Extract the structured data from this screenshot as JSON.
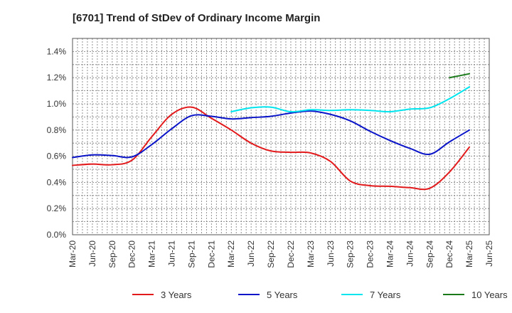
{
  "chart_data": {
    "type": "line",
    "title": "[6701]  Trend of StDev of Ordinary Income Margin",
    "xlabel": "",
    "ylabel": "",
    "x": [
      "Mar-20",
      "Jun-20",
      "Sep-20",
      "Dec-20",
      "Mar-21",
      "Jun-21",
      "Sep-21",
      "Dec-21",
      "Mar-22",
      "Jun-22",
      "Sep-22",
      "Dec-22",
      "Mar-23",
      "Jun-23",
      "Sep-23",
      "Dec-23",
      "Mar-24",
      "Jun-24",
      "Sep-24",
      "Dec-24",
      "Mar-25",
      "Jun-25"
    ],
    "ylim": [
      0,
      1.5
    ],
    "yticks": [
      0.0,
      0.2,
      0.4,
      0.6,
      0.8,
      1.0,
      1.2,
      1.4
    ],
    "ytick_labels": [
      "0.0%",
      "0.2%",
      "0.4%",
      "0.6%",
      "0.8%",
      "1.0%",
      "1.2%",
      "1.4%"
    ],
    "grid": true,
    "legend_position": "bottom",
    "series": [
      {
        "name": "3 Years",
        "color": "#e31a1c",
        "values": [
          0.53,
          0.54,
          0.535,
          0.57,
          0.75,
          0.92,
          0.975,
          0.89,
          0.8,
          0.7,
          0.64,
          0.63,
          0.625,
          0.56,
          0.41,
          0.375,
          0.37,
          0.36,
          0.355,
          0.48,
          0.67,
          null
        ]
      },
      {
        "name": "5 Years",
        "color": "#0a14c8",
        "values": [
          0.59,
          0.61,
          0.605,
          0.595,
          0.69,
          0.81,
          0.91,
          0.905,
          0.885,
          0.895,
          0.905,
          0.93,
          0.945,
          0.92,
          0.87,
          0.79,
          0.72,
          0.66,
          0.615,
          0.71,
          0.8,
          null
        ]
      },
      {
        "name": "7 Years",
        "color": "#00e5ee",
        "values": [
          null,
          null,
          null,
          null,
          null,
          null,
          null,
          null,
          0.94,
          0.97,
          0.975,
          0.94,
          0.955,
          0.95,
          0.955,
          0.95,
          0.94,
          0.96,
          0.97,
          1.04,
          1.13,
          null
        ]
      },
      {
        "name": "10 Years",
        "color": "#1a7a1a",
        "values": [
          null,
          null,
          null,
          null,
          null,
          null,
          null,
          null,
          null,
          null,
          null,
          null,
          null,
          null,
          null,
          null,
          null,
          null,
          null,
          1.2,
          1.23,
          null
        ]
      }
    ]
  }
}
